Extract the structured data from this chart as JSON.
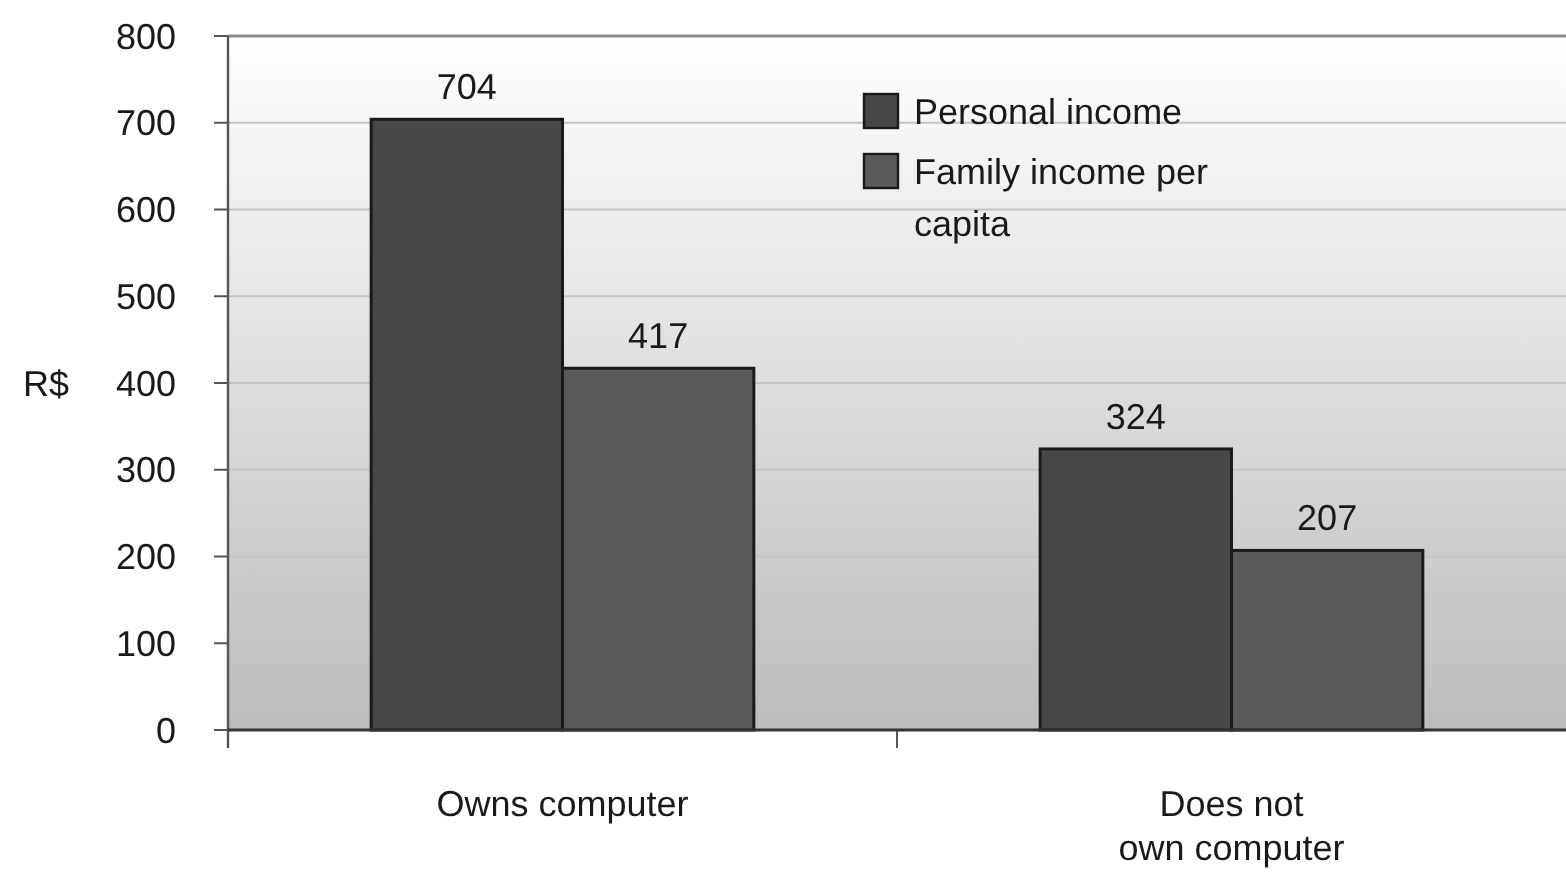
{
  "chart_data": {
    "type": "bar",
    "categories": [
      "Owns computer",
      "Does not\nown computer"
    ],
    "series": [
      {
        "name": "Personal income",
        "color": "#474747",
        "values": [
          704,
          324
        ]
      },
      {
        "name": "Family income per capita",
        "color": "#5a5a5a",
        "values": [
          417,
          207
        ]
      }
    ],
    "ylabel": "R$",
    "ylim": [
      0,
      800
    ],
    "yticks": [
      0,
      100,
      200,
      300,
      400,
      500,
      600,
      700,
      800
    ],
    "grid": "y",
    "legend": "top right",
    "data_labels": true
  }
}
